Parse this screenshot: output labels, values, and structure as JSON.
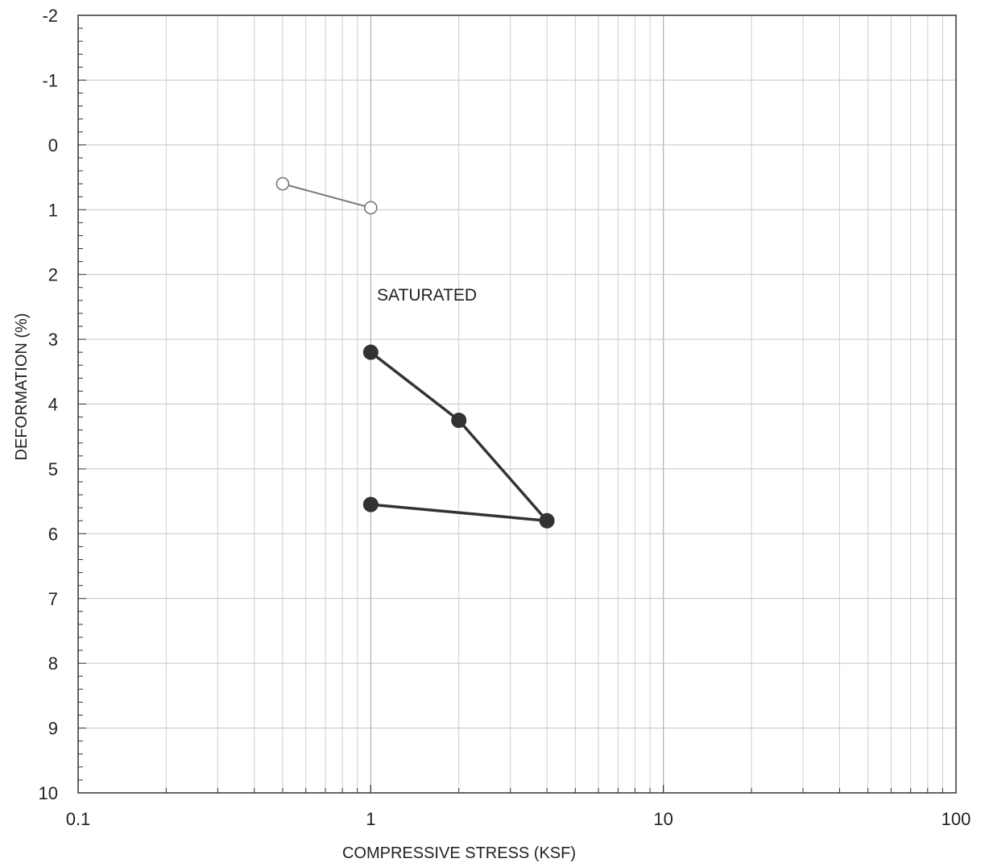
{
  "chart_data": {
    "type": "scatter",
    "xscale": "log",
    "xlim": [
      0.1,
      100
    ],
    "ylim": [
      -2,
      10
    ],
    "y_inverted": true,
    "xticks": [
      0.1,
      1,
      10,
      100
    ],
    "xtick_labels": [
      "0.1",
      "1",
      "10",
      "100"
    ],
    "yticks": [
      -2,
      -1,
      0,
      1,
      2,
      3,
      4,
      5,
      6,
      7,
      8,
      9,
      10
    ],
    "ytick_labels": [
      "-2",
      "-1",
      "0",
      "1",
      "2",
      "3",
      "4",
      "5",
      "6",
      "7",
      "8",
      "9",
      "10"
    ],
    "xlabel": "COMPRESSIVE STRESS (KSF)",
    "ylabel": "DEFORMATION (%)",
    "grid": true,
    "annotations": [
      {
        "text": "SATURATED",
        "x": 1.05,
        "y": 2.4
      }
    ],
    "series": [
      {
        "marker": "open-circle",
        "color": "#777777",
        "x": [
          0.5,
          1
        ],
        "y": [
          0.6,
          0.97
        ]
      },
      {
        "marker": "filled-circle",
        "color": "#333333",
        "x": [
          1,
          2,
          4,
          1
        ],
        "y": [
          3.2,
          4.25,
          5.8,
          5.55
        ]
      }
    ]
  }
}
